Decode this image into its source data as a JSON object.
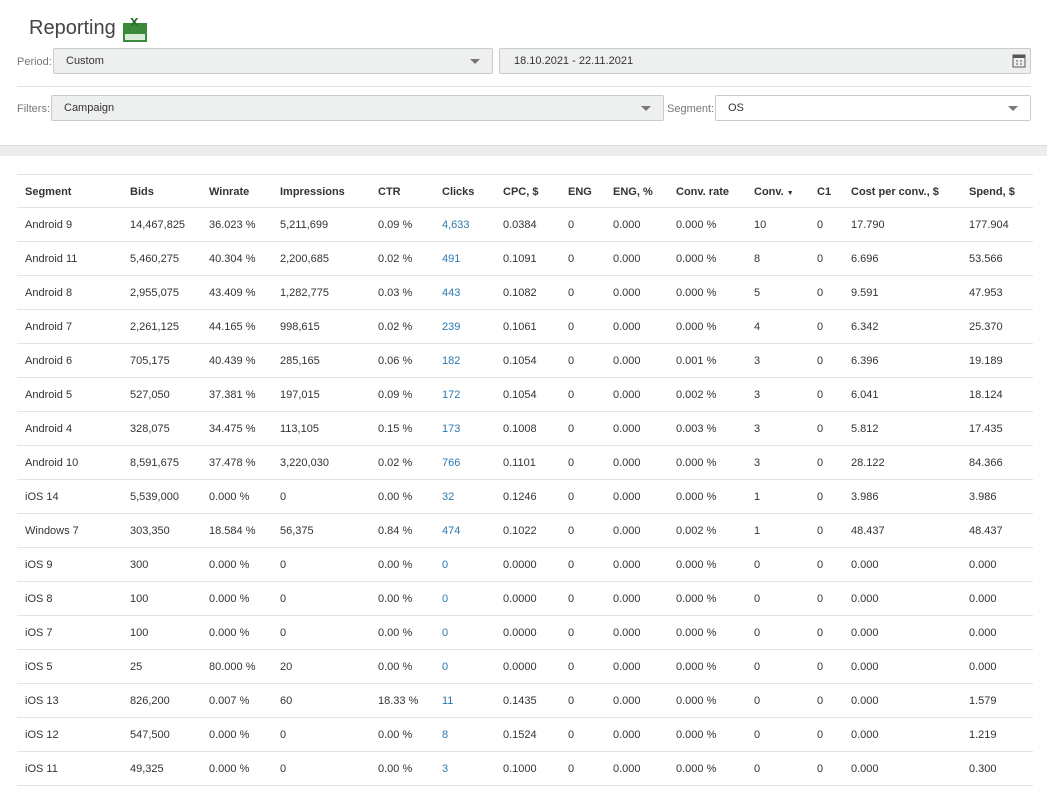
{
  "header": {
    "title": "Reporting"
  },
  "period": {
    "label": "Period:",
    "value": "Custom",
    "date_range": "18.10.2021 - 22.11.2021"
  },
  "filters": {
    "label": "Filters:",
    "value": "Campaign",
    "segment_label": "Segment:",
    "segment_value": "OS"
  },
  "table": {
    "columns": [
      "Segment",
      "Bids",
      "Winrate",
      "Impressions",
      "CTR",
      "Clicks",
      "CPC, $",
      "ENG",
      "ENG, %",
      "Conv. rate",
      "Conv.",
      "C1",
      "Cost per conv., $",
      "Spend, $"
    ],
    "rows": [
      [
        "Android 9",
        "14,467,825",
        "36.023 %",
        "5,211,699",
        "0.09 %",
        "4,633",
        "0.0384",
        "0",
        "0.000",
        "0.000 %",
        "10",
        "0",
        "17.790",
        "177.904"
      ],
      [
        "Android 11",
        "5,460,275",
        "40.304 %",
        "2,200,685",
        "0.02 %",
        "491",
        "0.1091",
        "0",
        "0.000",
        "0.000 %",
        "8",
        "0",
        "6.696",
        "53.566"
      ],
      [
        "Android 8",
        "2,955,075",
        "43.409 %",
        "1,282,775",
        "0.03 %",
        "443",
        "0.1082",
        "0",
        "0.000",
        "0.000 %",
        "5",
        "0",
        "9.591",
        "47.953"
      ],
      [
        "Android 7",
        "2,261,125",
        "44.165 %",
        "998,615",
        "0.02 %",
        "239",
        "0.1061",
        "0",
        "0.000",
        "0.000 %",
        "4",
        "0",
        "6.342",
        "25.370"
      ],
      [
        "Android 6",
        "705,175",
        "40.439 %",
        "285,165",
        "0.06 %",
        "182",
        "0.1054",
        "0",
        "0.000",
        "0.001 %",
        "3",
        "0",
        "6.396",
        "19.189"
      ],
      [
        "Android 5",
        "527,050",
        "37.381 %",
        "197,015",
        "0.09 %",
        "172",
        "0.1054",
        "0",
        "0.000",
        "0.002 %",
        "3",
        "0",
        "6.041",
        "18.124"
      ],
      [
        "Android 4",
        "328,075",
        "34.475 %",
        "113,105",
        "0.15 %",
        "173",
        "0.1008",
        "0",
        "0.000",
        "0.003 %",
        "3",
        "0",
        "5.812",
        "17.435"
      ],
      [
        "Android 10",
        "8,591,675",
        "37.478 %",
        "3,220,030",
        "0.02 %",
        "766",
        "0.1101",
        "0",
        "0.000",
        "0.000 %",
        "3",
        "0",
        "28.122",
        "84.366"
      ],
      [
        "iOS 14",
        "5,539,000",
        "0.000 %",
        "0",
        "0.00 %",
        "32",
        "0.1246",
        "0",
        "0.000",
        "0.000 %",
        "1",
        "0",
        "3.986",
        "3.986"
      ],
      [
        "Windows 7",
        "303,350",
        "18.584 %",
        "56,375",
        "0.84 %",
        "474",
        "0.1022",
        "0",
        "0.000",
        "0.002 %",
        "1",
        "0",
        "48.437",
        "48.437"
      ],
      [
        "iOS 9",
        "300",
        "0.000 %",
        "0",
        "0.00 %",
        "0",
        "0.0000",
        "0",
        "0.000",
        "0.000 %",
        "0",
        "0",
        "0.000",
        "0.000"
      ],
      [
        "iOS 8",
        "100",
        "0.000 %",
        "0",
        "0.00 %",
        "0",
        "0.0000",
        "0",
        "0.000",
        "0.000 %",
        "0",
        "0",
        "0.000",
        "0.000"
      ],
      [
        "iOS 7",
        "100",
        "0.000 %",
        "0",
        "0.00 %",
        "0",
        "0.0000",
        "0",
        "0.000",
        "0.000 %",
        "0",
        "0",
        "0.000",
        "0.000"
      ],
      [
        "iOS 5",
        "25",
        "80.000 %",
        "20",
        "0.00 %",
        "0",
        "0.0000",
        "0",
        "0.000",
        "0.000 %",
        "0",
        "0",
        "0.000",
        "0.000"
      ],
      [
        "iOS 13",
        "826,200",
        "0.007 %",
        "60",
        "18.33 %",
        "11",
        "0.1435",
        "0",
        "0.000",
        "0.000 %",
        "0",
        "0",
        "0.000",
        "1.579"
      ],
      [
        "iOS 12",
        "547,500",
        "0.000 %",
        "0",
        "0.00 %",
        "8",
        "0.1524",
        "0",
        "0.000",
        "0.000 %",
        "0",
        "0",
        "0.000",
        "1.219"
      ],
      [
        "iOS 11",
        "49,325",
        "0.000 %",
        "0",
        "0.00 %",
        "3",
        "0.1000",
        "0",
        "0.000",
        "0.000 %",
        "0",
        "0",
        "0.000",
        "0.300"
      ]
    ]
  }
}
